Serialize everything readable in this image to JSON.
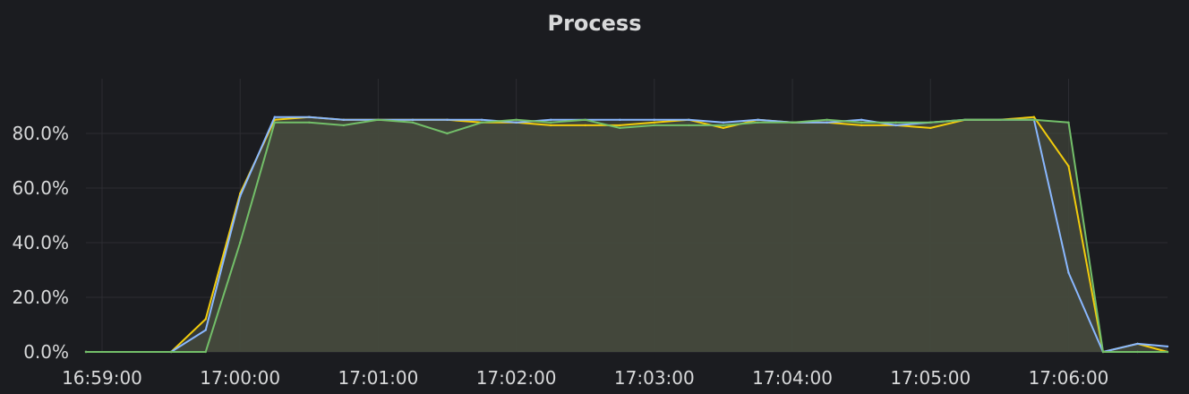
{
  "panel": {
    "title": "Process"
  },
  "chart_data": {
    "type": "area",
    "title": "Process",
    "xlabel": "",
    "ylabel": "",
    "x_unit": "time",
    "x_ticks": [
      "16:59:00",
      "17:00:00",
      "17:01:00",
      "17:02:00",
      "17:03:00",
      "17:04:00",
      "17:05:00",
      "17:06:00"
    ],
    "y_ticks": [
      "0.0%",
      "20.0%",
      "40.0%",
      "60.0%",
      "80.0%"
    ],
    "ylim": [
      0,
      100
    ],
    "xlim": [
      "16:58:53",
      "17:06:43"
    ],
    "grid": true,
    "legend": "none",
    "colors": {
      "yellow": "#f2cc0c",
      "blue": "#8ab8ff",
      "green": "#73bf69",
      "fill": "#454b3d",
      "grid": "#2c2d32"
    },
    "series": [
      {
        "color": "yellow",
        "points": [
          [
            "16:58:53",
            0
          ],
          [
            "16:59:30",
            0
          ],
          [
            "16:59:45",
            12
          ],
          [
            "17:00:00",
            58
          ],
          [
            "17:00:15",
            85
          ],
          [
            "17:00:30",
            86
          ],
          [
            "17:00:45",
            85
          ],
          [
            "17:01:00",
            85
          ],
          [
            "17:01:15",
            85
          ],
          [
            "17:01:30",
            85
          ],
          [
            "17:01:45",
            84
          ],
          [
            "17:02:00",
            84
          ],
          [
            "17:02:15",
            83
          ],
          [
            "17:02:30",
            83
          ],
          [
            "17:02:45",
            83
          ],
          [
            "17:03:00",
            84
          ],
          [
            "17:03:15",
            85
          ],
          [
            "17:03:30",
            82
          ],
          [
            "17:03:45",
            85
          ],
          [
            "17:04:00",
            84
          ],
          [
            "17:04:15",
            84
          ],
          [
            "17:04:30",
            83
          ],
          [
            "17:04:45",
            83
          ],
          [
            "17:05:00",
            82
          ],
          [
            "17:05:15",
            85
          ],
          [
            "17:05:30",
            85
          ],
          [
            "17:05:45",
            86
          ],
          [
            "17:06:00",
            68
          ],
          [
            "17:06:15",
            0
          ],
          [
            "17:06:30",
            3
          ],
          [
            "17:06:43",
            0
          ]
        ]
      },
      {
        "color": "blue",
        "points": [
          [
            "16:58:53",
            0
          ],
          [
            "16:59:30",
            0
          ],
          [
            "16:59:45",
            8
          ],
          [
            "17:00:00",
            57
          ],
          [
            "17:00:15",
            86
          ],
          [
            "17:00:30",
            86
          ],
          [
            "17:00:45",
            85
          ],
          [
            "17:01:00",
            85
          ],
          [
            "17:01:15",
            85
          ],
          [
            "17:01:30",
            85
          ],
          [
            "17:01:45",
            85
          ],
          [
            "17:02:00",
            84
          ],
          [
            "17:02:15",
            85
          ],
          [
            "17:02:30",
            85
          ],
          [
            "17:02:45",
            85
          ],
          [
            "17:03:00",
            85
          ],
          [
            "17:03:15",
            85
          ],
          [
            "17:03:30",
            84
          ],
          [
            "17:03:45",
            85
          ],
          [
            "17:04:00",
            84
          ],
          [
            "17:04:15",
            84
          ],
          [
            "17:04:30",
            85
          ],
          [
            "17:04:45",
            83
          ],
          [
            "17:05:00",
            84
          ],
          [
            "17:05:15",
            85
          ],
          [
            "17:05:30",
            85
          ],
          [
            "17:05:45",
            85
          ],
          [
            "17:06:00",
            29
          ],
          [
            "17:06:15",
            0
          ],
          [
            "17:06:30",
            3
          ],
          [
            "17:06:43",
            2
          ]
        ]
      },
      {
        "color": "green",
        "points": [
          [
            "16:58:53",
            0
          ],
          [
            "16:59:30",
            0
          ],
          [
            "16:59:45",
            0
          ],
          [
            "17:00:00",
            40
          ],
          [
            "17:00:15",
            84
          ],
          [
            "17:00:30",
            84
          ],
          [
            "17:00:45",
            83
          ],
          [
            "17:01:00",
            85
          ],
          [
            "17:01:15",
            84
          ],
          [
            "17:01:30",
            80
          ],
          [
            "17:01:45",
            84
          ],
          [
            "17:02:00",
            85
          ],
          [
            "17:02:15",
            84
          ],
          [
            "17:02:30",
            85
          ],
          [
            "17:02:45",
            82
          ],
          [
            "17:03:00",
            83
          ],
          [
            "17:03:15",
            83
          ],
          [
            "17:03:30",
            83
          ],
          [
            "17:03:45",
            84
          ],
          [
            "17:04:00",
            84
          ],
          [
            "17:04:15",
            85
          ],
          [
            "17:04:30",
            84
          ],
          [
            "17:04:45",
            84
          ],
          [
            "17:05:00",
            84
          ],
          [
            "17:05:15",
            85
          ],
          [
            "17:05:30",
            85
          ],
          [
            "17:05:45",
            85
          ],
          [
            "17:06:00",
            84
          ],
          [
            "17:06:15",
            0
          ],
          [
            "17:06:30",
            0
          ],
          [
            "17:06:43",
            0
          ]
        ]
      }
    ]
  }
}
